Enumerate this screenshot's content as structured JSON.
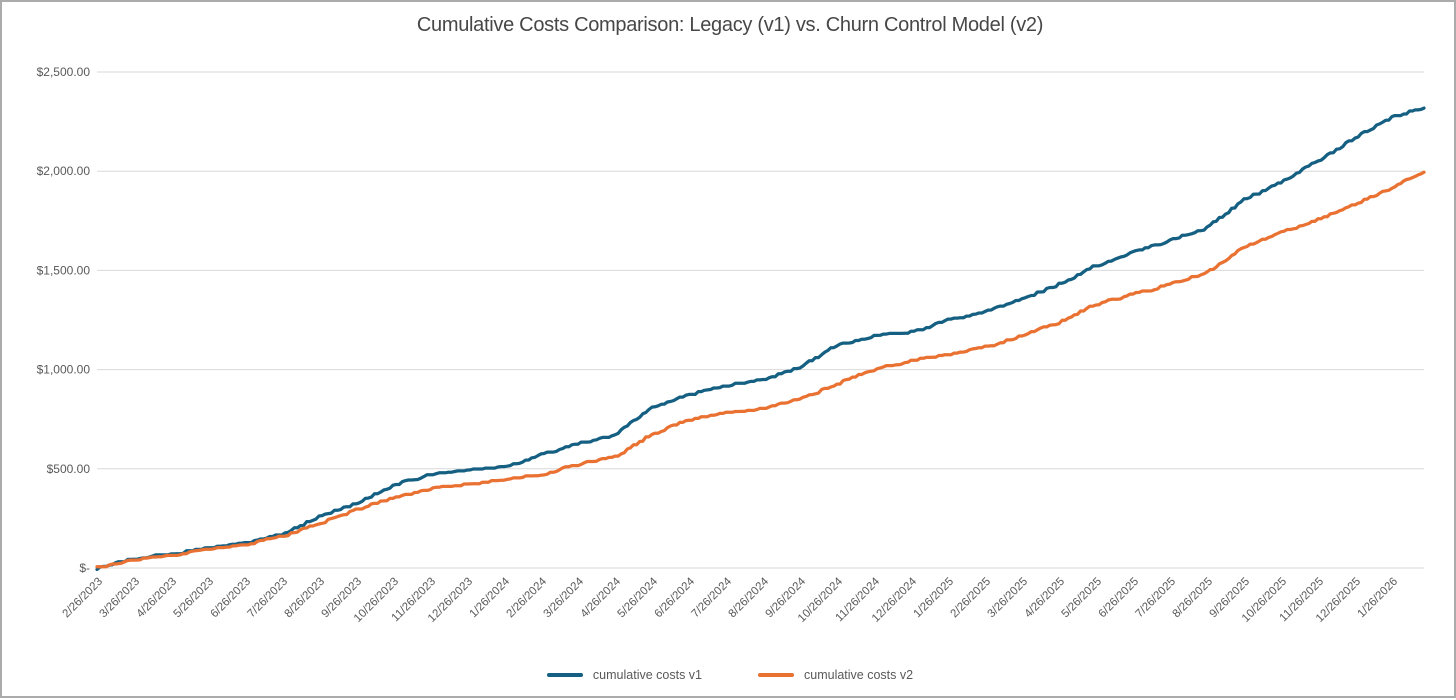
{
  "chart_data": {
    "type": "line",
    "title": "Cumulative Costs Comparison: Legacy (v1) vs. Churn Control Model (v2)",
    "xlabel": "",
    "ylabel": "",
    "grid": "horizontal",
    "legend_position": "bottom-center",
    "y_axis": {
      "min": 0,
      "max": 2500,
      "tick_values": [
        0,
        500,
        1000,
        1500,
        2000,
        2500
      ],
      "tick_labels": [
        "$-",
        "$500.00",
        "$1,000.00",
        "$1,500.00",
        "$2,000.00",
        "$2,500.00"
      ]
    },
    "categories": [
      "2/26/2023",
      "3/26/2023",
      "4/26/2023",
      "5/26/2023",
      "6/26/2023",
      "7/26/2023",
      "8/26/2023",
      "9/26/2023",
      "10/26/2023",
      "11/26/2023",
      "12/26/2023",
      "1/26/2024",
      "2/26/2024",
      "3/26/2024",
      "4/26/2024",
      "5/26/2024",
      "6/26/2024",
      "7/26/2024",
      "8/26/2024",
      "9/26/2024",
      "10/26/2024",
      "11/26/2024",
      "12/26/2024",
      "1/26/2025",
      "2/26/2025",
      "3/26/2025",
      "4/26/2025",
      "5/26/2025",
      "6/26/2025",
      "7/26/2025",
      "8/26/2025",
      "9/26/2025",
      "10/26/2025",
      "11/26/2025",
      "12/26/2025",
      "1/26/2026"
    ],
    "x_label_rotation_deg": -45,
    "series": [
      {
        "name": "cumulative costs v1",
        "color": "#156082",
        "values": [
          0,
          45,
          70,
          98,
          125,
          170,
          257,
          322,
          417,
          468,
          490,
          508,
          568,
          624,
          669,
          810,
          870,
          920,
          946,
          1011,
          1122,
          1170,
          1187,
          1248,
          1288,
          1353,
          1429,
          1524,
          1590,
          1650,
          1715,
          1856,
          1942,
          2052,
          2168,
          2269
        ],
        "edge_value": 2320
      },
      {
        "name": "cumulative costs v2",
        "color": "#E97132",
        "values": [
          0,
          40,
          63,
          90,
          115,
          158,
          221,
          292,
          352,
          397,
          420,
          443,
          468,
          523,
          558,
          674,
          745,
          780,
          800,
          850,
          926,
          1000,
          1046,
          1072,
          1112,
          1172,
          1238,
          1328,
          1378,
          1429,
          1489,
          1615,
          1690,
          1756,
          1831,
          1917
        ],
        "edge_value": 1995
      }
    ],
    "colors": {
      "gridline": "#d9d9d9",
      "axis_text": "#595959",
      "title_text": "#474747",
      "frame_border": "#ababab",
      "background": "#ffffff"
    }
  }
}
